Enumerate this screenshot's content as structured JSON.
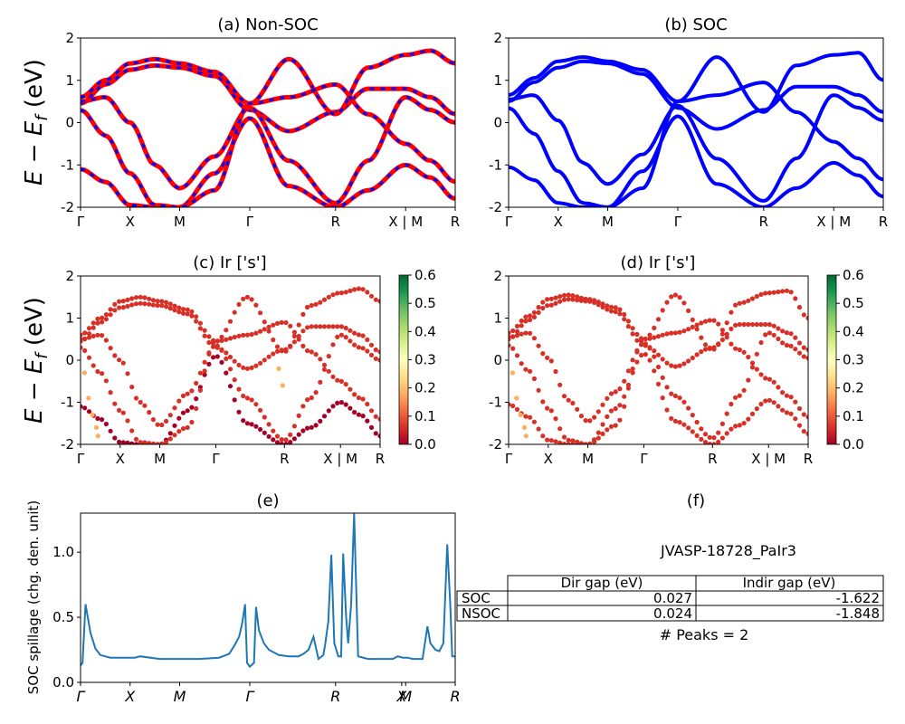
{
  "figure": {
    "title_a": "(a) Non-SOC",
    "title_b": "(b) SOC",
    "title_c": "(c)  Ir ['s']",
    "title_d": "(d) Ir ['s']",
    "title_e": "(e)",
    "title_f": "(f)",
    "ylabel_bands": "E − E_f (eV)",
    "ylabel_spillage": "SOC spillage (chg. den. unit)"
  },
  "colors": {
    "nonsoc_main": "#ff0000",
    "nonsoc_dash": "#0000ff",
    "soc": "#0000ff",
    "spillage_line": "#1f77b4",
    "colormap": [
      "#a50026",
      "#d73027",
      "#f46d43",
      "#fdae61",
      "#fee08b",
      "#ffffbf",
      "#d9ef8b",
      "#a6d96a",
      "#66bd63",
      "#1a9850",
      "#006837"
    ]
  },
  "kpath": {
    "labels": [
      "Γ",
      "X",
      "M",
      "Γ",
      "R",
      "X | M",
      "R"
    ],
    "positions": [
      0,
      0.5,
      1.0,
      1.707,
      2.573,
      3.28,
      3.78
    ],
    "spillage_labels": [
      "Γ",
      "X",
      "M",
      "Γ",
      "R",
      "X",
      "M",
      "R"
    ]
  },
  "gap_table": {
    "material": "JVASP-18728_PaIr3",
    "columns": [
      "",
      "Dir gap (eV)",
      "Indir gap (eV)"
    ],
    "rows": [
      {
        "label": "SOC",
        "dir": "0.027",
        "indir": "-1.622"
      },
      {
        "label": "NSOC",
        "dir": "0.024",
        "indir": "-1.848"
      }
    ],
    "peaks_text": "# Peaks = 2"
  },
  "chart_data": [
    {
      "id": "a",
      "type": "line",
      "title": "(a) Non-SOC",
      "xlabel": "",
      "ylabel": "E − E_f (eV)",
      "ylim": [
        -2,
        2
      ],
      "yticks": [
        -2,
        -1,
        0,
        1,
        2
      ],
      "xticklabels": [
        "Γ",
        "X",
        "M",
        "Γ",
        "R",
        "X | M",
        "R"
      ],
      "series": [
        {
          "x": [
            0,
            0.25,
            0.5,
            0.75,
            1.0,
            1.35,
            1.707,
            2.1,
            2.573,
            2.9,
            3.28,
            3.53,
            3.78
          ],
          "values": [
            0.45,
            0.9,
            1.25,
            1.35,
            1.3,
            1.1,
            0.3,
            -0.2,
            0.25,
            0.8,
            0.8,
            0.6,
            0.2
          ]
        },
        {
          "x": [
            0,
            0.25,
            0.5,
            0.75,
            1.0,
            1.35,
            1.707,
            2.1,
            2.573,
            2.9,
            3.28,
            3.53,
            3.78
          ],
          "values": [
            0.5,
            0.6,
            0.0,
            -1.0,
            -1.55,
            -0.8,
            0.35,
            -0.9,
            -1.9,
            -0.9,
            0.6,
            0.3,
            0.0
          ]
        },
        {
          "x": [
            0,
            0.25,
            0.5,
            0.75,
            1.0,
            1.35,
            1.707,
            2.1,
            2.573,
            2.9,
            3.28,
            3.53,
            3.78
          ],
          "values": [
            -1.1,
            -1.4,
            -1.95,
            -2.0,
            -2.0,
            -1.2,
            0.1,
            -1.5,
            -2.0,
            -1.6,
            -1.0,
            -1.3,
            -1.8
          ]
        },
        {
          "x": [
            0,
            0.25,
            0.5,
            0.75,
            1.0,
            1.35,
            1.707,
            2.1,
            2.573,
            2.9,
            3.28,
            3.53,
            3.78
          ],
          "values": [
            0.6,
            1.0,
            1.4,
            1.5,
            1.4,
            1.2,
            0.45,
            1.5,
            0.2,
            1.3,
            1.6,
            1.7,
            1.4
          ]
        },
        {
          "x": [
            0,
            0.25,
            0.5,
            0.75,
            1.0,
            1.35,
            1.707,
            2.1,
            2.573,
            2.9,
            3.28,
            3.53,
            3.78
          ],
          "values": [
            0.3,
            -0.3,
            -1.2,
            -1.95,
            -2.0,
            -1.6,
            0.45,
            0.6,
            0.9,
            0.2,
            -0.5,
            -0.9,
            -1.4
          ]
        }
      ]
    },
    {
      "id": "b",
      "type": "line",
      "title": "(b) SOC",
      "xlabel": "",
      "ylabel": "",
      "ylim": [
        -2,
        2
      ],
      "yticks": [
        -2,
        -1,
        0,
        1,
        2
      ],
      "xticklabels": [
        "Γ",
        "X",
        "M",
        "Γ",
        "R",
        "X | M",
        "R"
      ],
      "series": [
        {
          "x": [
            0,
            0.25,
            0.5,
            0.75,
            1.0,
            1.35,
            1.707,
            2.1,
            2.573,
            2.9,
            3.28,
            3.53,
            3.78
          ],
          "values": [
            0.5,
            0.95,
            1.3,
            1.45,
            1.4,
            1.15,
            0.35,
            -0.15,
            0.3,
            0.85,
            0.85,
            0.65,
            0.25
          ]
        },
        {
          "x": [
            0,
            0.25,
            0.5,
            0.75,
            1.0,
            1.35,
            1.707,
            2.1,
            2.573,
            2.9,
            3.28,
            3.53,
            3.78
          ],
          "values": [
            0.55,
            0.65,
            0.05,
            -0.95,
            -1.45,
            -0.75,
            0.4,
            -0.85,
            -1.85,
            -0.85,
            0.65,
            0.35,
            0.05
          ]
        },
        {
          "x": [
            0,
            0.25,
            0.5,
            0.75,
            1.0,
            1.35,
            1.707,
            2.1,
            2.573,
            2.9,
            3.28,
            3.53,
            3.78
          ],
          "values": [
            -1.05,
            -1.35,
            -1.9,
            -2.0,
            -2.0,
            -1.15,
            0.15,
            -1.45,
            -2.0,
            -1.55,
            -0.95,
            -1.25,
            -1.75
          ]
        },
        {
          "x": [
            0,
            0.25,
            0.5,
            0.75,
            1.0,
            1.35,
            1.707,
            2.1,
            2.573,
            2.9,
            3.28,
            3.53,
            3.78
          ],
          "values": [
            0.65,
            1.05,
            1.45,
            1.55,
            1.45,
            1.25,
            0.5,
            1.55,
            0.25,
            1.35,
            1.6,
            1.65,
            1.0
          ]
        },
        {
          "x": [
            0,
            0.25,
            0.5,
            0.75,
            1.0,
            1.35,
            1.707,
            2.1,
            2.573,
            2.9,
            3.28,
            3.53,
            3.78
          ],
          "values": [
            0.35,
            -0.25,
            -1.15,
            -1.9,
            -2.0,
            -1.55,
            0.5,
            0.65,
            0.95,
            0.25,
            -0.45,
            -0.85,
            -1.35
          ]
        }
      ]
    },
    {
      "id": "c",
      "type": "scatter",
      "title": "(c)  Ir ['s']",
      "xlabel": "",
      "ylabel": "E − E_f (eV)",
      "ylim": [
        -2,
        2
      ],
      "yticks": [
        -2,
        -1,
        0,
        1,
        2
      ],
      "xticklabels": [
        "Γ",
        "X",
        "M",
        "Γ",
        "R",
        "X | M",
        "R"
      ],
      "colorbar": {
        "range": [
          0.0,
          0.6
        ],
        "ticks": [
          "0.0",
          "0.1",
          "0.2",
          "0.3",
          "0.4",
          "0.5",
          "0.6"
        ]
      },
      "series": [
        {
          "x": [
            0,
            0.25,
            0.5,
            0.75,
            1.0,
            1.35,
            1.707,
            2.1,
            2.573,
            2.9,
            3.28,
            3.53,
            3.78
          ],
          "values": [
            0.45,
            0.9,
            1.25,
            1.35,
            1.3,
            1.1,
            0.3,
            -0.2,
            0.25,
            0.8,
            0.8,
            0.6,
            0.2
          ],
          "weight": 0.03
        },
        {
          "x": [
            0,
            0.25,
            0.5,
            0.75,
            1.0,
            1.35,
            1.707,
            2.1,
            2.573,
            2.9,
            3.28,
            3.53,
            3.78
          ],
          "values": [
            0.5,
            0.6,
            0.0,
            -1.0,
            -1.55,
            -0.8,
            0.35,
            -0.9,
            -1.9,
            -0.9,
            0.6,
            0.3,
            0.0
          ],
          "weight": 0.05
        },
        {
          "x": [
            0,
            0.25,
            0.5,
            0.75,
            1.0,
            1.35,
            1.707,
            2.1,
            2.573,
            2.9,
            3.28,
            3.53,
            3.78
          ],
          "values": [
            -1.1,
            -1.4,
            -1.95,
            -2.0,
            -2.0,
            -1.2,
            0.1,
            -1.5,
            -2.0,
            -1.6,
            -1.0,
            -1.3,
            -1.8
          ],
          "weight": 0.02
        },
        {
          "x": [
            0,
            0.25,
            0.5,
            0.75,
            1.0,
            1.35,
            1.707,
            2.1,
            2.573,
            2.9,
            3.28,
            3.53,
            3.78
          ],
          "values": [
            0.6,
            1.0,
            1.4,
            1.5,
            1.4,
            1.2,
            0.45,
            1.5,
            0.2,
            1.3,
            1.6,
            1.7,
            1.4
          ],
          "weight": 0.04
        },
        {
          "x": [
            0,
            0.25,
            0.5,
            0.75,
            1.0,
            1.35,
            1.707,
            2.1,
            2.573,
            2.9,
            3.28,
            3.53,
            3.78
          ],
          "values": [
            0.3,
            -0.3,
            -1.2,
            -1.95,
            -2.0,
            -1.6,
            0.45,
            0.6,
            0.9,
            0.2,
            -0.5,
            -0.9,
            -1.4
          ],
          "weight": 0.06
        },
        {
          "x": [
            0.05,
            0.1,
            0.15,
            0.2,
            0.22,
            2.5,
            2.55
          ],
          "values": [
            -0.3,
            -0.9,
            -1.3,
            -1.6,
            -1.8,
            -0.2,
            -0.6
          ],
          "weight": 0.2
        }
      ]
    },
    {
      "id": "d",
      "type": "scatter",
      "title": "(d) Ir ['s']",
      "xlabel": "",
      "ylabel": "",
      "ylim": [
        -2,
        2
      ],
      "yticks": [
        -2,
        -1,
        0,
        1,
        2
      ],
      "xticklabels": [
        "Γ",
        "X",
        "M",
        "Γ",
        "R",
        "X | M",
        "R"
      ],
      "colorbar": {
        "range": [
          0.0,
          0.6
        ],
        "ticks": [
          "0.0",
          "0.1",
          "0.2",
          "0.3",
          "0.4",
          "0.5",
          "0.6"
        ]
      },
      "series": [
        {
          "x": [
            0,
            0.25,
            0.5,
            0.75,
            1.0,
            1.35,
            1.707,
            2.1,
            2.573,
            2.9,
            3.28,
            3.53,
            3.78
          ],
          "values": [
            0.5,
            0.95,
            1.3,
            1.45,
            1.4,
            1.15,
            0.35,
            -0.15,
            0.3,
            0.85,
            0.85,
            0.65,
            0.25
          ],
          "weight": 0.05
        },
        {
          "x": [
            0,
            0.25,
            0.5,
            0.75,
            1.0,
            1.35,
            1.707,
            2.1,
            2.573,
            2.9,
            3.28,
            3.53,
            3.78
          ],
          "values": [
            0.55,
            0.65,
            0.05,
            -0.95,
            -1.45,
            -0.75,
            0.4,
            -0.85,
            -1.85,
            -0.85,
            0.65,
            0.35,
            0.05
          ],
          "weight": 0.04
        },
        {
          "x": [
            0,
            0.25,
            0.5,
            0.75,
            1.0,
            1.35,
            1.707,
            2.1,
            2.573,
            2.9,
            3.28,
            3.53,
            3.78
          ],
          "values": [
            -1.05,
            -1.35,
            -1.9,
            -2.0,
            -2.0,
            -1.15,
            0.15,
            -1.45,
            -2.0,
            -1.55,
            -0.95,
            -1.25,
            -1.75
          ],
          "weight": 0.03
        },
        {
          "x": [
            0,
            0.25,
            0.5,
            0.75,
            1.0,
            1.35,
            1.707,
            2.1,
            2.573,
            2.9,
            3.28,
            3.53,
            3.78
          ],
          "values": [
            0.65,
            1.05,
            1.45,
            1.55,
            1.45,
            1.25,
            0.5,
            1.55,
            0.25,
            1.35,
            1.6,
            1.65,
            1.0
          ],
          "weight": 0.06
        },
        {
          "x": [
            0,
            0.25,
            0.5,
            0.75,
            1.0,
            1.35,
            1.707,
            2.1,
            2.573,
            2.9,
            3.28,
            3.53,
            3.78
          ],
          "values": [
            0.35,
            -0.25,
            -1.15,
            -1.9,
            -2.0,
            -1.55,
            0.5,
            0.65,
            0.95,
            0.25,
            -0.45,
            -0.85,
            -1.35
          ],
          "weight": 0.05
        },
        {
          "x": [
            0.05,
            0.1,
            0.15,
            0.2,
            0.22
          ],
          "values": [
            -0.3,
            -0.9,
            -1.3,
            -1.6,
            -1.8
          ],
          "weight": 0.2
        }
      ]
    },
    {
      "id": "e",
      "type": "line",
      "title": "(e)",
      "xlabel": "",
      "ylabel": "SOC spillage (chg. den. unit)",
      "ylim": [
        0,
        1.3
      ],
      "yticks": [
        0.0,
        0.5,
        1.0
      ],
      "xticklabels": [
        "Γ",
        "X",
        "M",
        "Γ",
        "R",
        "X",
        "M",
        "R"
      ],
      "xtickpositions": [
        0,
        0.5,
        1.0,
        1.707,
        2.573,
        3.24,
        3.28,
        3.78
      ],
      "series": [
        {
          "x": [
            0,
            0.02,
            0.05,
            0.1,
            0.15,
            0.2,
            0.3,
            0.45,
            0.55,
            0.6,
            0.8,
            1.0,
            1.2,
            1.4,
            1.5,
            1.55,
            1.6,
            1.63,
            1.66,
            1.68,
            1.707,
            1.75,
            1.77,
            1.8,
            1.85,
            1.9,
            2.0,
            2.1,
            2.2,
            2.25,
            2.3,
            2.35,
            2.4,
            2.45,
            2.47,
            2.5,
            2.53,
            2.56,
            2.6,
            2.63,
            2.65,
            2.68,
            2.7,
            2.73,
            2.76,
            2.8,
            2.9,
            2.95,
            3.0,
            3.1,
            3.15,
            3.2,
            3.25,
            3.3,
            3.35,
            3.45,
            3.5,
            3.53,
            3.58,
            3.62,
            3.66,
            3.7,
            3.73,
            3.75,
            3.77,
            3.78
          ],
          "values": [
            0.13,
            0.15,
            0.6,
            0.38,
            0.26,
            0.21,
            0.19,
            0.19,
            0.19,
            0.2,
            0.18,
            0.18,
            0.18,
            0.19,
            0.22,
            0.28,
            0.35,
            0.45,
            0.6,
            0.15,
            0.12,
            0.15,
            0.58,
            0.4,
            0.3,
            0.25,
            0.21,
            0.2,
            0.2,
            0.22,
            0.25,
            0.35,
            0.18,
            0.21,
            0.3,
            0.47,
            0.98,
            0.3,
            0.2,
            0.2,
            0.99,
            0.5,
            0.3,
            0.6,
            1.3,
            0.2,
            0.18,
            0.18,
            0.18,
            0.18,
            0.18,
            0.2,
            0.19,
            0.19,
            0.18,
            0.18,
            0.43,
            0.3,
            0.25,
            0.24,
            0.3,
            1.06,
            0.6,
            0.2,
            0.2,
            0.2
          ]
        }
      ]
    }
  ]
}
